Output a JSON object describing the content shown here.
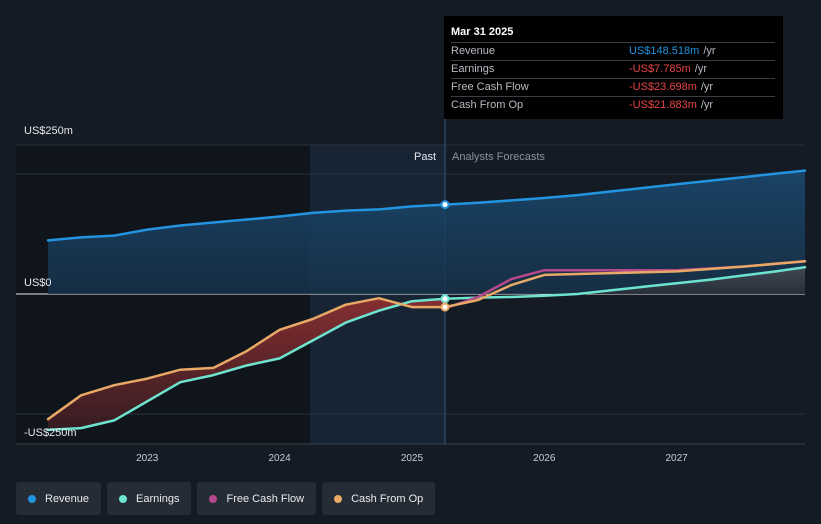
{
  "tooltip": {
    "date": "Mar 31 2025",
    "rows": [
      {
        "label": "Revenue",
        "value": "US$148.518m",
        "unit": "/yr",
        "color": "#2394df"
      },
      {
        "label": "Earnings",
        "value": "-US$7.785m",
        "unit": "/yr",
        "color": "#e64545"
      },
      {
        "label": "Free Cash Flow",
        "value": "-US$23.698m",
        "unit": "/yr",
        "color": "#e64545"
      },
      {
        "label": "Cash From Op",
        "value": "-US$21.883m",
        "unit": "/yr",
        "color": "#e64545"
      }
    ]
  },
  "legend": [
    {
      "label": "Revenue",
      "color": "#2394df"
    },
    {
      "label": "Earnings",
      "color": "#6ee3cf"
    },
    {
      "label": "Free Cash Flow",
      "color": "#b5498b"
    },
    {
      "label": "Cash From Op",
      "color": "#e8a866"
    }
  ],
  "chart_data": {
    "type": "line",
    "y_tick_labels": [
      "US$250m",
      "US$0",
      "-US$250m"
    ],
    "x_tick_labels": [
      "2023",
      "2024",
      "2025",
      "2026",
      "2027"
    ],
    "ylim": [
      -250,
      250
    ],
    "xlim": [
      2022.25,
      2027.97
    ],
    "past_label": "Past",
    "forecast_label": "Analysts Forecasts",
    "divider_x": 2025.25,
    "forecast_shade_start_x": 2024.23,
    "series": [
      {
        "name": "Revenue",
        "color": "#2394df",
        "points": [
          [
            2022.25,
            90
          ],
          [
            2022.5,
            95
          ],
          [
            2022.75,
            98
          ],
          [
            2023.0,
            108
          ],
          [
            2023.25,
            115
          ],
          [
            2023.5,
            120
          ],
          [
            2023.75,
            125
          ],
          [
            2024.0,
            130
          ],
          [
            2024.25,
            136
          ],
          [
            2024.5,
            140
          ],
          [
            2024.75,
            142
          ],
          [
            2025.0,
            147
          ],
          [
            2025.25,
            150
          ],
          [
            2025.5,
            153
          ],
          [
            2025.75,
            157
          ],
          [
            2026.0,
            161
          ],
          [
            2026.25,
            166
          ],
          [
            2026.5,
            172
          ],
          [
            2026.75,
            178
          ],
          [
            2027.0,
            184
          ],
          [
            2027.25,
            190
          ],
          [
            2027.5,
            196
          ],
          [
            2027.75,
            202
          ],
          [
            2027.97,
            207
          ]
        ]
      },
      {
        "name": "Earnings",
        "color": "#6ee3cf",
        "points": [
          [
            2022.25,
            -228
          ],
          [
            2022.5,
            -225
          ],
          [
            2022.75,
            -212
          ],
          [
            2023.0,
            -180
          ],
          [
            2023.25,
            -148
          ],
          [
            2023.5,
            -136
          ],
          [
            2023.75,
            -120
          ],
          [
            2024.0,
            -108
          ],
          [
            2024.25,
            -78
          ],
          [
            2024.5,
            -48
          ],
          [
            2024.75,
            -28
          ],
          [
            2025.0,
            -12
          ],
          [
            2025.25,
            -8
          ],
          [
            2025.5,
            -6
          ],
          [
            2025.75,
            -5
          ],
          [
            2026.0,
            -3
          ],
          [
            2026.25,
            0
          ],
          [
            2026.5,
            6
          ],
          [
            2026.75,
            12
          ],
          [
            2027.0,
            18
          ],
          [
            2027.25,
            24
          ],
          [
            2027.5,
            31
          ],
          [
            2027.75,
            38
          ],
          [
            2027.97,
            45
          ]
        ]
      },
      {
        "name": "Free Cash Flow",
        "color": "#b5498b",
        "points": [
          [
            2025.25,
            -24
          ],
          [
            2025.5,
            -5
          ],
          [
            2025.75,
            25
          ],
          [
            2026.0,
            40
          ],
          [
            2026.5,
            40
          ],
          [
            2027.0,
            40
          ],
          [
            2027.5,
            46
          ],
          [
            2027.97,
            55
          ]
        ]
      },
      {
        "name": "Cash From Op",
        "color": "#e8a866",
        "points": [
          [
            2022.25,
            -210
          ],
          [
            2022.5,
            -170
          ],
          [
            2022.75,
            -153
          ],
          [
            2023.0,
            -142
          ],
          [
            2023.25,
            -127
          ],
          [
            2023.5,
            -124
          ],
          [
            2023.75,
            -96
          ],
          [
            2024.0,
            -60
          ],
          [
            2024.25,
            -42
          ],
          [
            2024.5,
            -18
          ],
          [
            2024.75,
            -7
          ],
          [
            2025.0,
            -22
          ],
          [
            2025.25,
            -22
          ],
          [
            2025.5,
            -10
          ],
          [
            2025.75,
            15
          ],
          [
            2026.0,
            32
          ],
          [
            2026.5,
            35
          ],
          [
            2027.0,
            38
          ],
          [
            2027.5,
            46
          ],
          [
            2027.97,
            55
          ]
        ]
      }
    ]
  }
}
